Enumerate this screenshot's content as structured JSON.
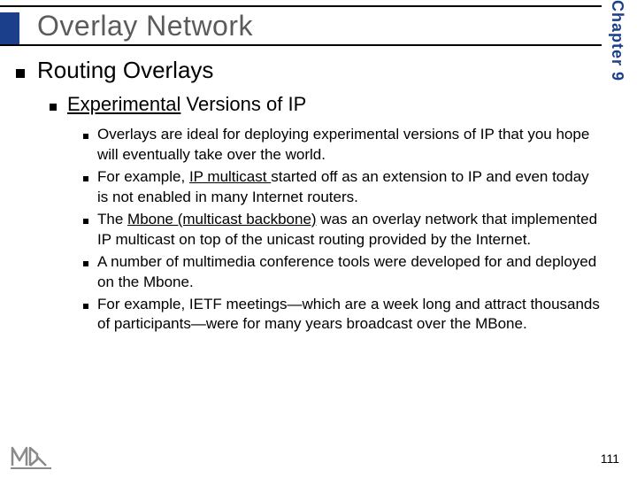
{
  "chapter_label": "Chapter 9",
  "title": "Overlay Network",
  "level1": "Routing Overlays",
  "level2_pre": "Experimental",
  "level2_post": " Versions of IP",
  "bullets": [
    {
      "before": "Overlays are ideal for deploying experimental versions of IP that you hope will eventually take over the world."
    },
    {
      "before": "For example, ",
      "u": "IP multicast ",
      "after": "started off as an extension to IP and even today is not enabled in many Internet routers."
    },
    {
      "before": "The ",
      "u": "Mbone (multicast backbone)",
      "after": " was an overlay network that implemented IP multicast on top of the unicast routing provided by the Internet."
    },
    {
      "before": "A number of multimedia conference tools were developed for and deployed on the Mbone."
    },
    {
      "before": "For example, IETF meetings—which are a week long and attract thousands of participants—were for many years broadcast over the MBone."
    }
  ],
  "page_number": "111",
  "colors": {
    "accent": "#1b3f8b",
    "title_text": "#5b5b5b"
  }
}
